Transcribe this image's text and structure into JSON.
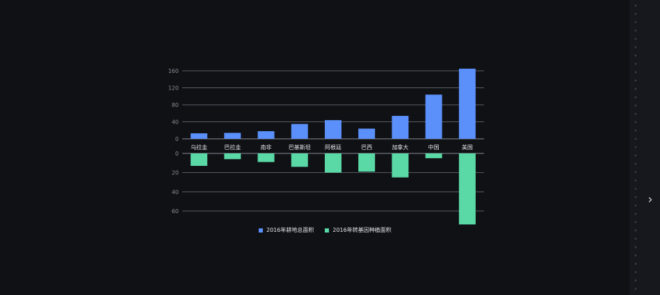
{
  "chart_data": {
    "type": "bar",
    "categories": [
      "乌拉圭",
      "巴拉圭",
      "南非",
      "巴基斯坦",
      "阿根廷",
      "巴西",
      "加拿大",
      "中国",
      "美国"
    ],
    "series": [
      {
        "name": "2016年耕地总面积",
        "values": [
          13,
          14,
          18,
          35,
          44,
          24,
          54,
          104,
          165
        ],
        "color": "#5b8ff9"
      },
      {
        "name": "2016年转基因种植面积",
        "values": [
          13,
          6,
          9,
          14,
          20,
          19,
          25,
          5,
          74
        ],
        "color": "#5ad8a6"
      }
    ],
    "top_axis": {
      "ticks": [
        "0",
        "40",
        "80",
        "120",
        "160"
      ],
      "ylim": [
        0,
        160
      ]
    },
    "bottom_axis": {
      "ticks": [
        "0",
        "20",
        "40",
        "60"
      ],
      "ylim": [
        0,
        60
      ]
    },
    "legend_position": "bottom",
    "grid": true
  },
  "ui": {
    "expand_icon": "chevron-right-icon",
    "expand_glyph": "›"
  }
}
